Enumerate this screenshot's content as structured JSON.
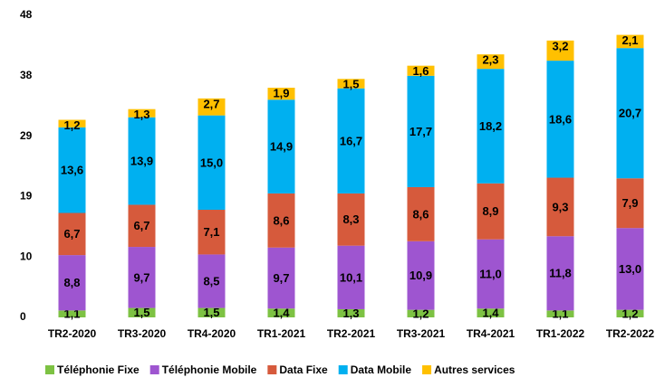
{
  "chart_data": {
    "type": "stacked_bar",
    "categories": [
      "TR2-2020",
      "TR3-2020",
      "TR4-2020",
      "TR1-2021",
      "TR2-2021",
      "TR3-2021",
      "TR4-2021",
      "TR1-2022",
      "TR2-2022"
    ],
    "series": [
      {
        "name": "Téléphonie Fixe",
        "color": "#7dc243",
        "values": [
          1.1,
          1.5,
          1.5,
          1.4,
          1.3,
          1.2,
          1.4,
          1.1,
          1.2
        ],
        "value_labels": [
          "1,1",
          "1,5",
          "1,5",
          "1,4",
          "1,3",
          "1,2",
          "1,4",
          "1,1",
          "1,2"
        ]
      },
      {
        "name": "Téléphonie Mobile",
        "color": "#9e55d0",
        "values": [
          8.8,
          9.7,
          8.5,
          9.7,
          10.1,
          10.9,
          11.0,
          11.8,
          13.0
        ],
        "value_labels": [
          "8,8",
          "9,7",
          "8,5",
          "9,7",
          "10,1",
          "10,9",
          "11,0",
          "11,8",
          "13,0"
        ]
      },
      {
        "name": "Data Fixe",
        "color": "#d65a3c",
        "values": [
          6.7,
          6.7,
          7.1,
          8.6,
          8.3,
          8.6,
          8.9,
          9.3,
          7.9
        ],
        "value_labels": [
          "6,7",
          "6,7",
          "7,1",
          "8,6",
          "8,3",
          "8,6",
          "8,9",
          "9,3",
          "7,9"
        ]
      },
      {
        "name": "Data Mobile",
        "color": "#00b0f0",
        "values": [
          13.6,
          13.9,
          15.0,
          14.9,
          16.7,
          17.7,
          18.2,
          18.6,
          20.7
        ],
        "value_labels": [
          "13,6",
          "13,9",
          "15,0",
          "14,9",
          "16,7",
          "17,7",
          "18,2",
          "18,6",
          "20,7"
        ]
      },
      {
        "name": "Autres services",
        "color": "#ffc000",
        "values": [
          1.2,
          1.3,
          2.7,
          1.9,
          1.5,
          1.6,
          2.3,
          3.2,
          2.1
        ],
        "value_labels": [
          "1,2",
          "1,3",
          "2,7",
          "1,9",
          "1,5",
          "1,6",
          "2,3",
          "3,2",
          "2,1"
        ]
      }
    ],
    "ylim": [
      0,
      48
    ],
    "yticks": [
      0,
      {
        "value": 9.6,
        "label": "10"
      },
      {
        "value": 19.2,
        "label": "19"
      },
      {
        "value": 28.8,
        "label": "29"
      },
      {
        "value": 38.4,
        "label": "38"
      },
      48
    ],
    "grid": false,
    "legend": "bottom"
  }
}
